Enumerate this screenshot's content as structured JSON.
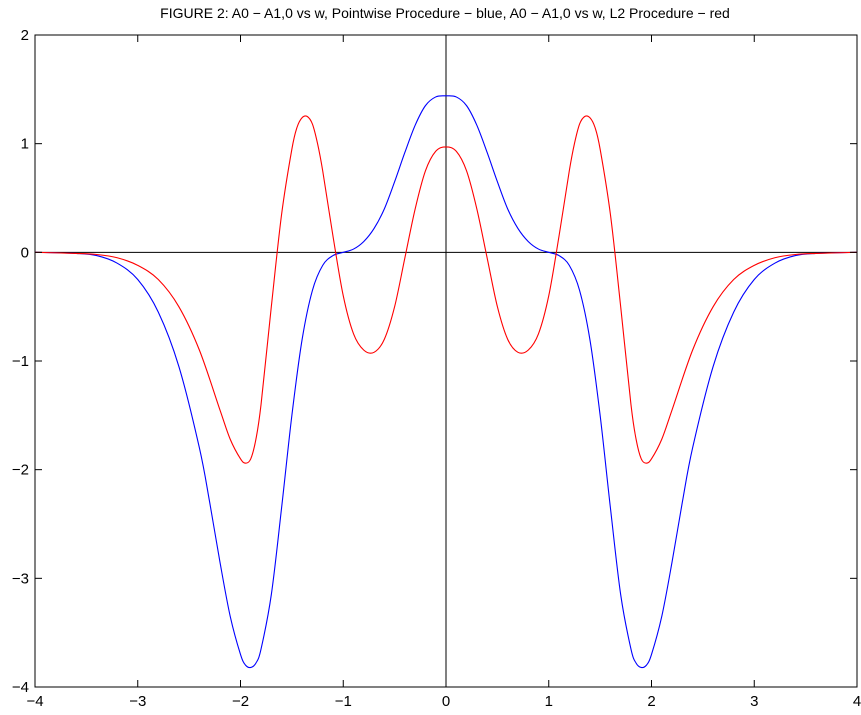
{
  "chart_data": {
    "type": "line",
    "title": "FIGURE 2: A0 − A1,0 vs w, Pointwise Procedure − blue, A0 − A1,0 vs w, L2 Procedure − red",
    "xlim": [
      -4,
      4
    ],
    "ylim": [
      -4,
      2
    ],
    "xticks": [
      -4,
      -3,
      -2,
      -1,
      0,
      1,
      2,
      3,
      4
    ],
    "yticks": [
      -4,
      -3,
      -2,
      -1,
      0,
      1,
      2
    ],
    "xtick_labels": [
      "−4",
      "−3",
      "−2",
      "−1",
      "0",
      "1",
      "2",
      "3",
      "4"
    ],
    "ytick_labels": [
      "−4",
      "−3",
      "−2",
      "−1",
      "0",
      "1",
      "2"
    ],
    "grid": false,
    "axis_lines": {
      "x_zero": true,
      "y_zero": true
    },
    "series": [
      {
        "color": "#0000ff",
        "x": [
          -4.0,
          -3.6,
          -3.4,
          -3.2,
          -3.0,
          -2.8,
          -2.6,
          -2.4,
          -2.3,
          -2.2,
          -2.1,
          -2.0,
          -1.95,
          -1.9,
          -1.85,
          -1.8,
          -1.7,
          -1.6,
          -1.5,
          -1.4,
          -1.3,
          -1.2,
          -1.1,
          -1.0,
          -0.9,
          -0.8,
          -0.7,
          -0.6,
          -0.5,
          -0.4,
          -0.3,
          -0.2,
          -0.1,
          0.0,
          0.1,
          0.2,
          0.3,
          0.4,
          0.5,
          0.6,
          0.7,
          0.8,
          0.9,
          1.0,
          1.1,
          1.2,
          1.3,
          1.4,
          1.5,
          1.6,
          1.7,
          1.8,
          1.85,
          1.9,
          1.95,
          2.0,
          2.1,
          2.2,
          2.3,
          2.4,
          2.6,
          2.8,
          3.0,
          3.2,
          3.4,
          3.6,
          4.0
        ],
        "y": [
          0.0,
          -0.01,
          -0.03,
          -0.1,
          -0.25,
          -0.55,
          -1.05,
          -1.8,
          -2.3,
          -2.85,
          -3.35,
          -3.7,
          -3.8,
          -3.82,
          -3.78,
          -3.65,
          -3.15,
          -2.35,
          -1.5,
          -0.8,
          -0.35,
          -0.12,
          -0.03,
          0.0,
          0.03,
          0.1,
          0.22,
          0.4,
          0.65,
          0.92,
          1.17,
          1.35,
          1.43,
          1.44,
          1.43,
          1.35,
          1.17,
          0.92,
          0.65,
          0.4,
          0.22,
          0.1,
          0.03,
          0.0,
          -0.03,
          -0.12,
          -0.35,
          -0.8,
          -1.5,
          -2.35,
          -3.15,
          -3.65,
          -3.78,
          -3.82,
          -3.8,
          -3.7,
          -3.35,
          -2.85,
          -2.3,
          -1.8,
          -1.05,
          -0.55,
          -0.25,
          -0.1,
          -0.03,
          -0.01,
          0.0
        ]
      },
      {
        "color": "#ff0000",
        "x": [
          -4.0,
          -3.6,
          -3.4,
          -3.2,
          -3.0,
          -2.8,
          -2.6,
          -2.4,
          -2.2,
          -2.1,
          -2.0,
          -1.95,
          -1.9,
          -1.85,
          -1.8,
          -1.7,
          -1.6,
          -1.5,
          -1.45,
          -1.4,
          -1.35,
          -1.3,
          -1.25,
          -1.2,
          -1.1,
          -1.0,
          -0.9,
          -0.8,
          -0.7,
          -0.6,
          -0.5,
          -0.4,
          -0.3,
          -0.2,
          -0.1,
          0.0,
          0.1,
          0.2,
          0.3,
          0.4,
          0.5,
          0.6,
          0.7,
          0.8,
          0.9,
          1.0,
          1.1,
          1.2,
          1.25,
          1.3,
          1.35,
          1.4,
          1.45,
          1.5,
          1.6,
          1.7,
          1.8,
          1.85,
          1.9,
          1.95,
          2.0,
          2.1,
          2.2,
          2.4,
          2.6,
          2.8,
          3.0,
          3.2,
          3.4,
          3.6,
          4.0
        ],
        "y": [
          0.0,
          -0.01,
          -0.02,
          -0.05,
          -0.12,
          -0.25,
          -0.5,
          -0.9,
          -1.45,
          -1.72,
          -1.9,
          -1.94,
          -1.9,
          -1.72,
          -1.4,
          -0.5,
          0.35,
          0.95,
          1.15,
          1.24,
          1.25,
          1.18,
          1.0,
          0.75,
          0.15,
          -0.4,
          -0.75,
          -0.9,
          -0.92,
          -0.8,
          -0.5,
          -0.05,
          0.4,
          0.75,
          0.93,
          0.97,
          0.93,
          0.75,
          0.4,
          -0.05,
          -0.5,
          -0.8,
          -0.92,
          -0.9,
          -0.75,
          -0.4,
          0.15,
          0.75,
          1.0,
          1.18,
          1.25,
          1.24,
          1.15,
          0.95,
          0.35,
          -0.5,
          -1.4,
          -1.72,
          -1.9,
          -1.94,
          -1.9,
          -1.72,
          -1.45,
          -0.9,
          -0.5,
          -0.25,
          -0.12,
          -0.05,
          -0.02,
          -0.01,
          0.0
        ]
      }
    ]
  }
}
